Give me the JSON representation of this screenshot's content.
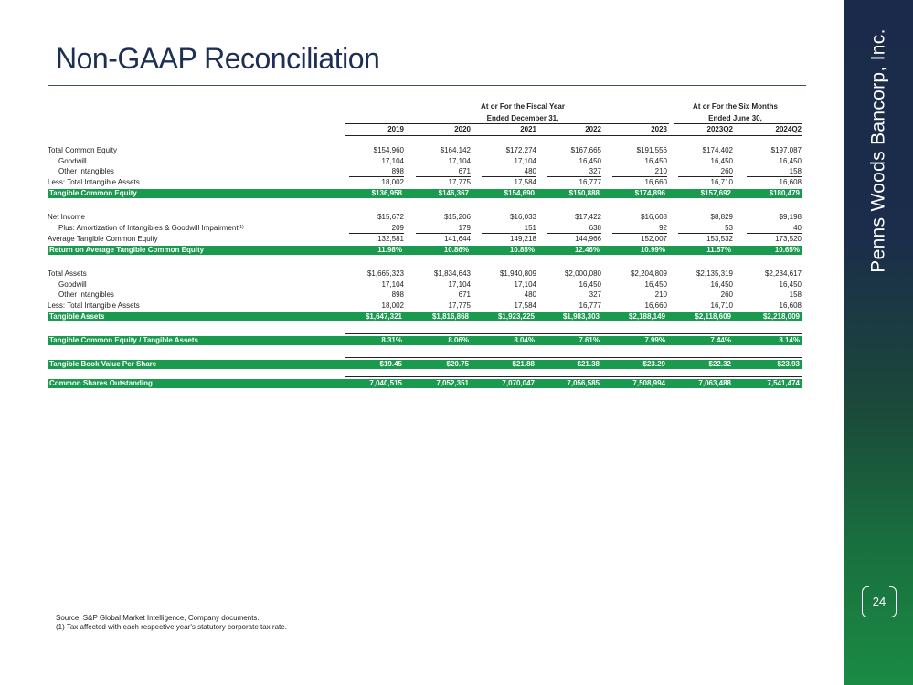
{
  "title": "Non-GAAP Reconciliation",
  "brand": "Penns Woods Bancorp, Inc.",
  "page_number": "24",
  "header_groups": {
    "fiscal_line1": "At or For the Fiscal Year",
    "fiscal_line2": "Ended December 31,",
    "six_line1": "At or For the Six Months",
    "six_line2": "Ended June 30,"
  },
  "columns": [
    "2019",
    "2020",
    "2021",
    "2022",
    "2023",
    "2023Q2",
    "2024Q2"
  ],
  "rows": [
    {
      "label": "Total Common Equity",
      "values": [
        "$154,960",
        "$164,142",
        "$172,274",
        "$167,665",
        "$191,556",
        "$174,402",
        "$197,087"
      ]
    },
    {
      "label": "Goodwill",
      "values": [
        "17,104",
        "17,104",
        "17,104",
        "16,450",
        "16,450",
        "16,450",
        "16,450"
      ]
    },
    {
      "label": "Other Intangibles",
      "values": [
        "898",
        "671",
        "480",
        "327",
        "210",
        "260",
        "158"
      ]
    },
    {
      "label": "Less: Total Intangible Assets",
      "values": [
        "18,002",
        "17,775",
        "17,584",
        "16,777",
        "16,660",
        "16,710",
        "16,608"
      ]
    },
    {
      "label": "Tangible Common Equity",
      "values": [
        "$136,958",
        "$146,367",
        "$154,690",
        "$150,888",
        "$174,896",
        "$157,692",
        "$180,479"
      ]
    },
    {
      "label": "Net Income",
      "values": [
        "$15,672",
        "$15,206",
        "$16,033",
        "$17,422",
        "$16,608",
        "$8,829",
        "$9,198"
      ]
    },
    {
      "label": "Plus: Amortization of Intangibles & Goodwill Impairment",
      "footnote": "(1)",
      "values": [
        "209",
        "179",
        "151",
        "638",
        "92",
        "53",
        "40"
      ]
    },
    {
      "label": "Average Tangible Common Equity",
      "values": [
        "132,581",
        "141,644",
        "149,218",
        "144,966",
        "152,007",
        "153,532",
        "173,520"
      ]
    },
    {
      "label": "Return on Average Tangible Common Equity",
      "values": [
        "11.98%",
        "10.86%",
        "10.85%",
        "12.46%",
        "10.99%",
        "11.57%",
        "10.65%"
      ]
    },
    {
      "label": "Total Assets",
      "values": [
        "$1,665,323",
        "$1,834,643",
        "$1,940,809",
        "$2,000,080",
        "$2,204,809",
        "$2,135,319",
        "$2,234,617"
      ]
    },
    {
      "label": "Goodwill",
      "values": [
        "17,104",
        "17,104",
        "17,104",
        "16,450",
        "16,450",
        "16,450",
        "16,450"
      ]
    },
    {
      "label": "Other Intangibles",
      "values": [
        "898",
        "671",
        "480",
        "327",
        "210",
        "260",
        "158"
      ]
    },
    {
      "label": "Less: Total Intangible Assets",
      "values": [
        "18,002",
        "17,775",
        "17,584",
        "16,777",
        "16,660",
        "16,710",
        "16,608"
      ]
    },
    {
      "label": "Tangible Assets",
      "values": [
        "$1,647,321",
        "$1,816,868",
        "$1,923,225",
        "$1,983,303",
        "$2,188,149",
        "$2,118,609",
        "$2,218,009"
      ]
    },
    {
      "label": "Tangible Common Equity / Tangible Assets",
      "values": [
        "8.31%",
        "8.06%",
        "8.04%",
        "7.61%",
        "7.99%",
        "7.44%",
        "8.14%"
      ]
    },
    {
      "label": "Tangible Book Value Per Share",
      "values": [
        "$19.45",
        "$20.75",
        "$21.88",
        "$21.38",
        "$23.29",
        "$22.32",
        "$23.93"
      ]
    },
    {
      "label": "Common Shares Outstanding",
      "values": [
        "7,040,515",
        "7,052,351",
        "7,070,047",
        "7,056,585",
        "7,508,994",
        "7,063,488",
        "7,541,474"
      ]
    }
  ],
  "footnotes": {
    "source": "Source: S&P Global Market Intelligence, Company documents.",
    "note1": "(1) Tax affected with each respective year's statutory corporate tax rate."
  }
}
